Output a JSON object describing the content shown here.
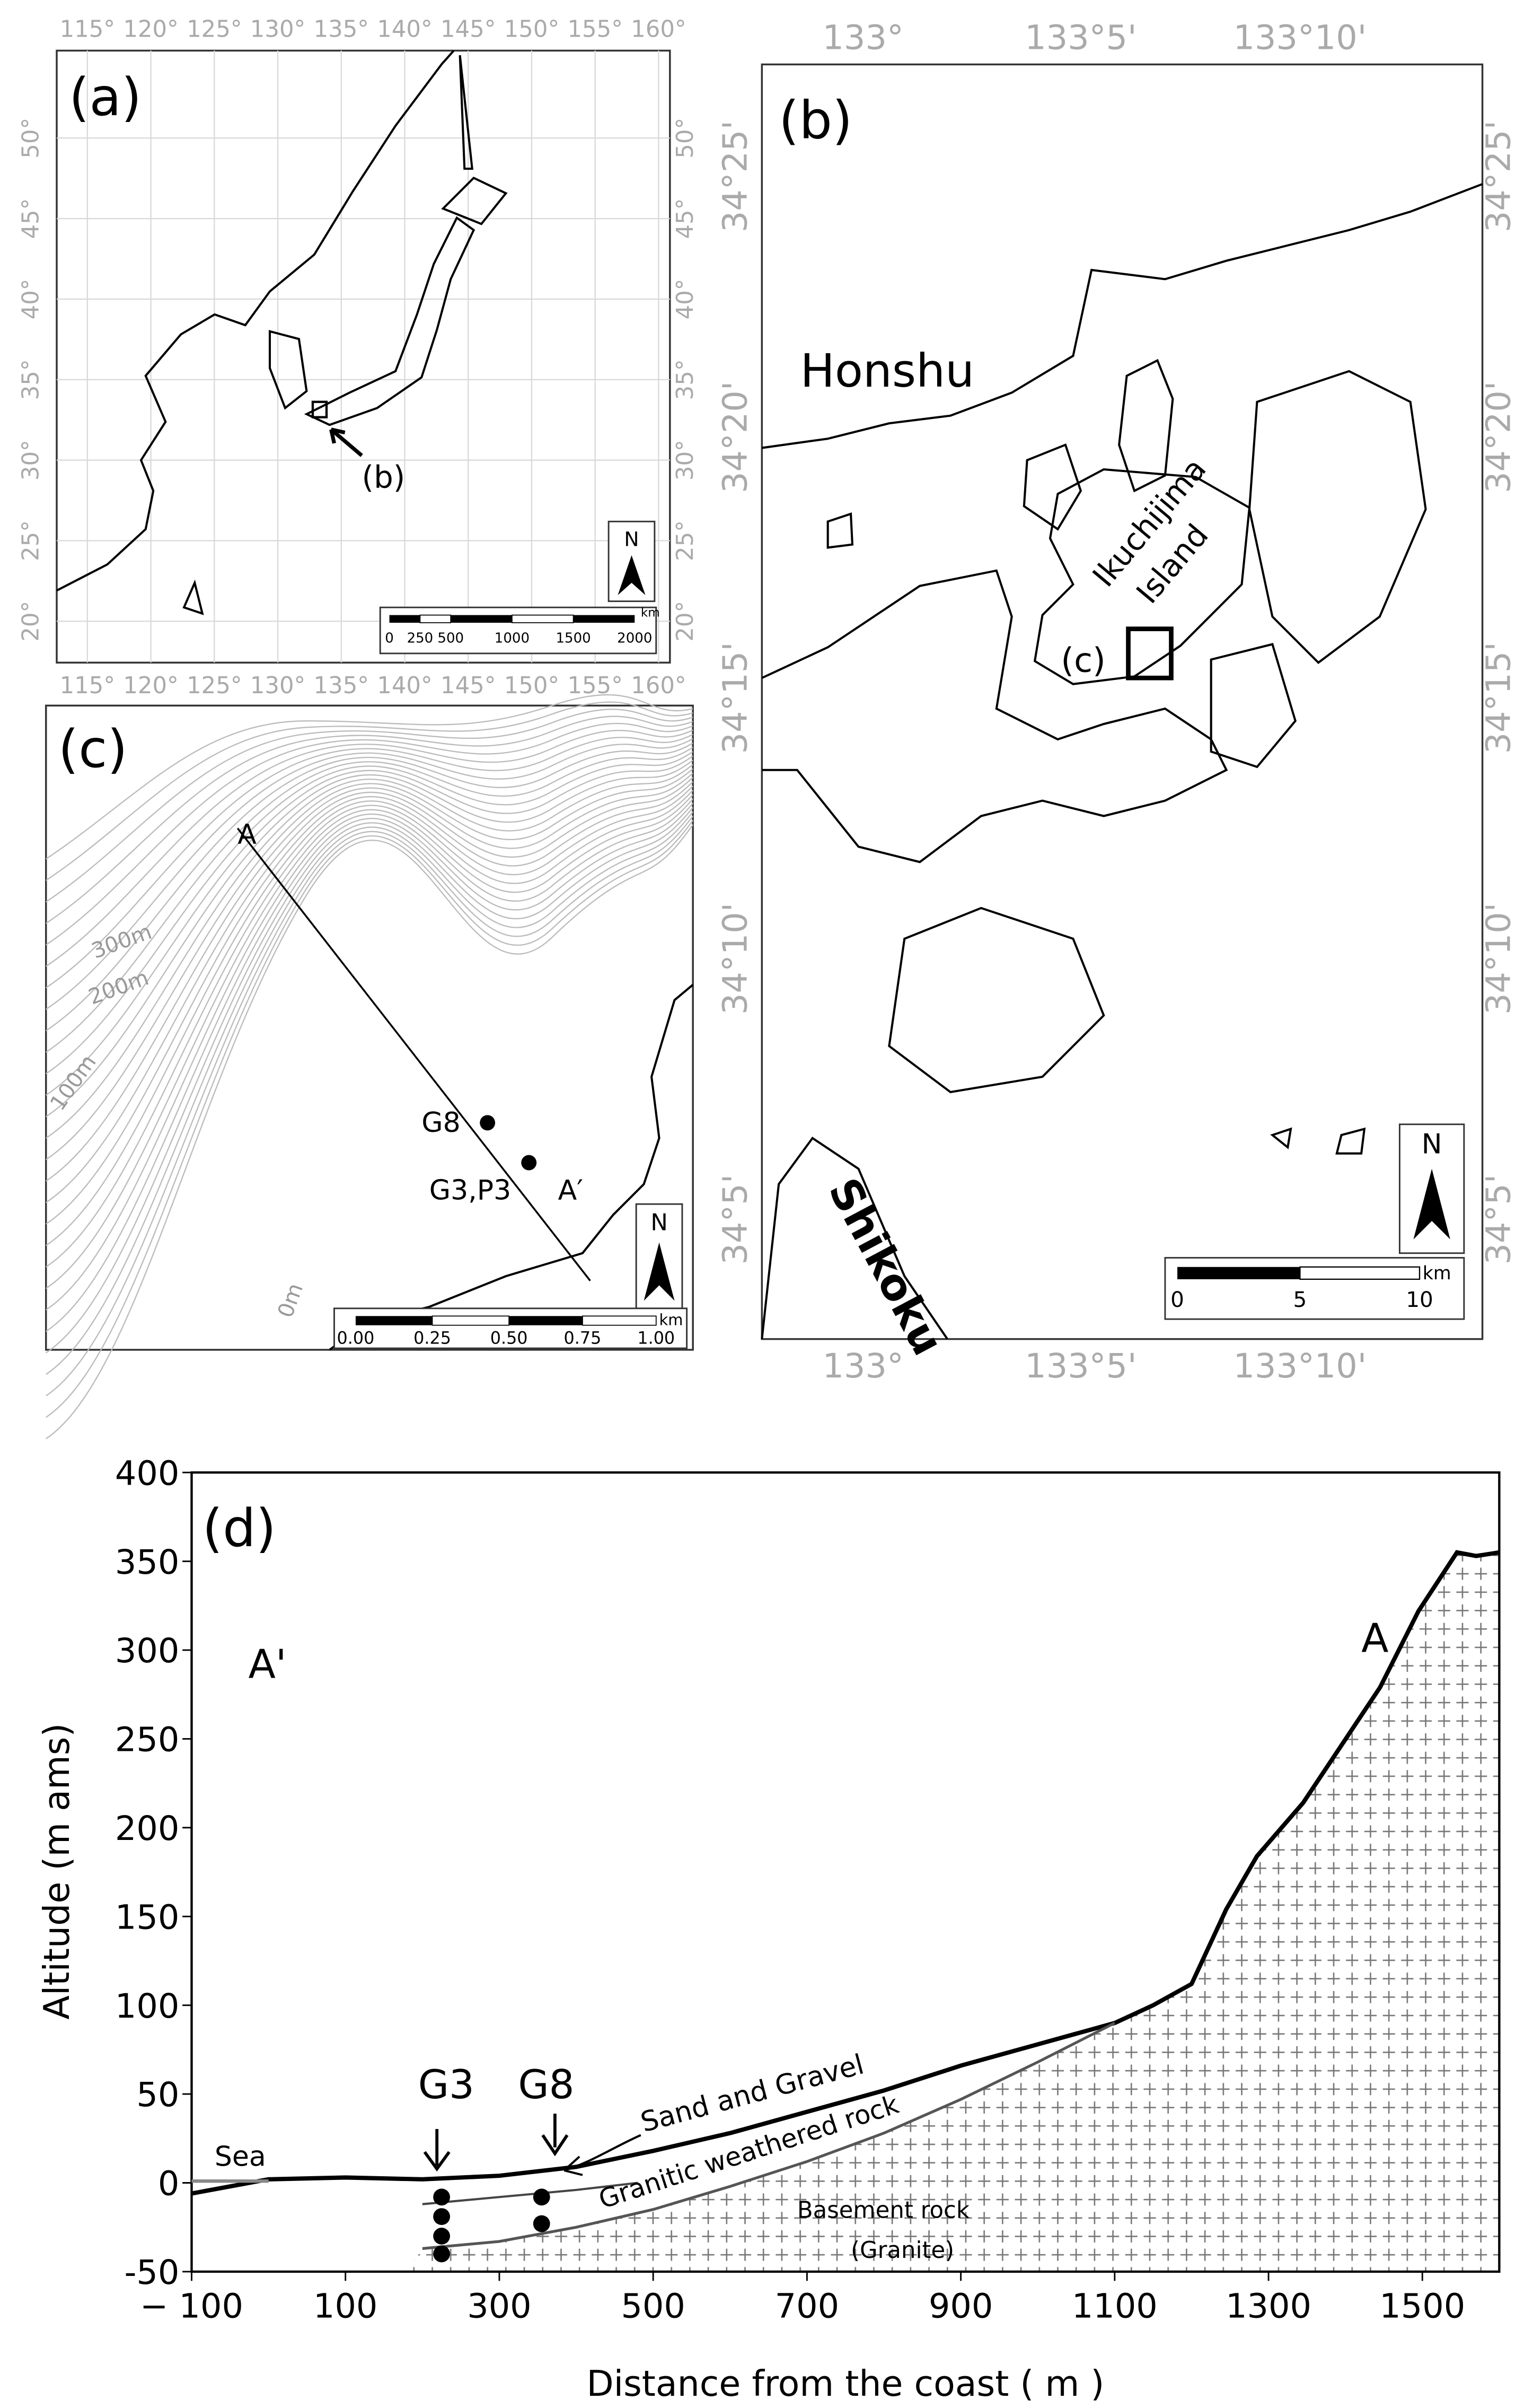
{
  "maps": {
    "a": {
      "label": "(a)",
      "lon_labels": [
        "115°",
        "120°",
        "125°",
        "130°",
        "135°",
        "140°",
        "145°",
        "150°",
        "155°",
        "160°"
      ],
      "lat_labels": [
        "20°",
        "25°",
        "30°",
        "35°",
        "40°",
        "45°",
        "50°"
      ],
      "pointer": "(b)",
      "north": "N",
      "scale_labels": [
        "0",
        "250",
        "500",
        "1000",
        "1500",
        "2000"
      ],
      "scale_unit": "km"
    },
    "b": {
      "label": "(b)",
      "lon_labels": [
        "133°",
        "133°5'",
        "133°10'"
      ],
      "lat_labels": [
        "34°25'",
        "34°20'",
        "34°15'",
        "34°10'",
        "34°5'"
      ],
      "places": [
        "Honshu",
        "Ikuchijima",
        "Island",
        "(c)",
        "Shikoku"
      ],
      "north": "N",
      "scale_labels": [
        "0",
        "5",
        "10"
      ],
      "scale_unit": "km"
    },
    "c": {
      "label": "(c)",
      "contours": [
        "300m",
        "200m",
        "100m",
        "0m"
      ],
      "section": [
        "A",
        "A′"
      ],
      "sites": [
        "G8",
        "G3,P3"
      ],
      "north": "N",
      "scale_labels": [
        "0.00",
        "0.25",
        "0.50",
        "0.75",
        "1.00"
      ],
      "scale_unit": "km"
    }
  },
  "chart_data": {
    "type": "line",
    "panel_label": "(d)",
    "xlabel": "Distance from the coast ( m )",
    "ylabel": "Altitude (m ams)",
    "xlim": [
      -100,
      1600
    ],
    "xticks": [
      {
        "value": -100,
        "label": "− 100"
      },
      100,
      300,
      500,
      700,
      900,
      1100,
      1300,
      1500
    ],
    "ylim": [
      -50,
      400
    ],
    "yticks": [
      -50,
      0,
      50,
      100,
      150,
      200,
      250,
      300,
      350,
      400
    ],
    "series": [
      {
        "color": "#000000",
        "x": [
          -100,
          0,
          100,
          200,
          300,
          400,
          500,
          600,
          700,
          800,
          900,
          1000,
          1100,
          1150,
          1200,
          1245,
          1285,
          1345,
          1405,
          1445,
          1495,
          1545,
          1570,
          1600
        ],
        "values": [
          -6,
          2,
          3,
          2,
          4,
          9,
          18,
          28,
          40,
          52,
          66,
          78,
          90,
          100,
          112,
          154,
          184,
          214,
          253,
          279,
          322,
          355,
          353,
          355
        ]
      },
      {
        "color": "#444444",
        "x": [
          200,
          300,
          400,
          480
        ],
        "values": [
          -12,
          -8,
          -4,
          0
        ]
      },
      {
        "color": "#555555",
        "x": [
          200,
          300,
          400,
          500,
          600,
          700,
          800,
          900,
          1000,
          1100
        ],
        "values": [
          -37,
          -33,
          -25,
          -15,
          -2,
          12,
          28,
          47,
          68,
          90
        ]
      },
      {
        "color": "#888888",
        "x": [
          -100,
          0
        ],
        "values": [
          1,
          1
        ]
      }
    ],
    "boreholes": [
      {
        "label": "G3",
        "x": [
          225,
          225,
          225,
          225
        ],
        "values": [
          -8,
          -19,
          -30,
          -40
        ]
      },
      {
        "label": "G8",
        "x": [
          355,
          355
        ],
        "values": [
          -8,
          -23
        ]
      }
    ],
    "annotations": [
      "Sea",
      "Sand and Gravel",
      "Granitic  weathered rock",
      "Basement rock",
      "(Granite)",
      "A'",
      "A"
    ]
  }
}
